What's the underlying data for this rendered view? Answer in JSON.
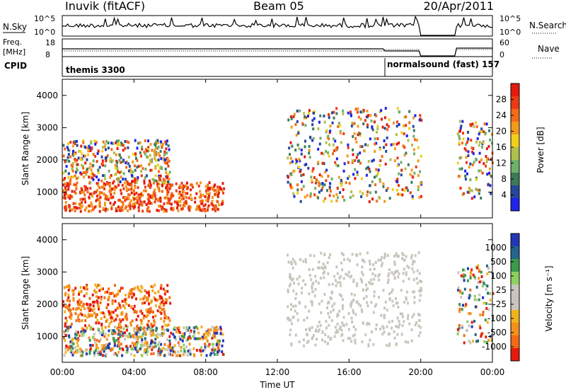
{
  "header": {
    "station": "Inuvik (fitACF)",
    "beam": "Beam 05",
    "date": "20/Apr/2011"
  },
  "top_panels": {
    "nsky_label": "N.Sky",
    "nsky_ticks": [
      "10^5",
      "10^0"
    ],
    "nsearch_label": "N.Search",
    "nsearch_ticks": [
      "10^5",
      "10^0"
    ],
    "freq_label": "Freq.",
    "freq_unit": "[MHz]",
    "freq_ticks": [
      "18",
      "8"
    ],
    "nave_label": "Nave",
    "nave_ticks": [
      "60",
      "0"
    ],
    "cpid_label": "CPID",
    "cpid_segments": [
      {
        "text": "themis 3300",
        "start_hour": 0,
        "end_hour": 18
      },
      {
        "text": "normalsound (fast)  157",
        "start_hour": 18,
        "end_hour": 24
      }
    ]
  },
  "x_axis": {
    "label": "Time UT",
    "ticks": [
      "00:00",
      "04:00",
      "08:00",
      "12:00",
      "16:00",
      "20:00",
      "00:00"
    ],
    "tick_hours": [
      0,
      4,
      8,
      12,
      16,
      20,
      24
    ]
  },
  "colors": {
    "power": [
      "#1f23e8",
      "#27479b",
      "#3c7a5a",
      "#6fb06a",
      "#b0c04a",
      "#f2cf1c",
      "#f29a1c",
      "#f46a17",
      "#ea3a13",
      "#e41a0f"
    ],
    "velocity": [
      "#e41a0f",
      "#f26a17",
      "#f2921c",
      "#f2b21e",
      "#c8c6bc",
      "#c8c6bc",
      "#8ed060",
      "#3a9a4a",
      "#24648a",
      "#2336b8"
    ]
  },
  "chart_data": [
    {
      "type": "heatmap",
      "title": "",
      "xlabel": "",
      "ylabel": "Slant Range [km]",
      "x_range_hours": [
        0,
        24
      ],
      "ylim": [
        200,
        4500
      ],
      "y_ticks": [
        1000,
        2000,
        3000,
        4000
      ],
      "colorbar": {
        "label": "Power [dB]",
        "ticks": [
          "28",
          "24",
          "20",
          "16",
          "12",
          "8",
          "4"
        ],
        "range": [
          0,
          30
        ]
      },
      "features": [
        {
          "name": "band_low_0_9",
          "t0": 0,
          "t1": 9,
          "r0": 400,
          "r1": 1300,
          "level": "high"
        },
        {
          "name": "band_mid_0_6",
          "t0": 0,
          "t1": 6,
          "r0": 1300,
          "r1": 2600,
          "level": "mixed"
        },
        {
          "name": "ridge_12_20",
          "t0": 12.5,
          "t1": 20,
          "r0": 700,
          "r1": 3600,
          "level": "mixed"
        },
        {
          "name": "late_22_24",
          "t0": 22,
          "t1": 24,
          "r0": 800,
          "r1": 3200,
          "level": "mixed"
        }
      ]
    },
    {
      "type": "heatmap",
      "title": "",
      "xlabel": "Time UT",
      "ylabel": "Slant Range [km]",
      "x_range_hours": [
        0,
        24
      ],
      "ylim": [
        200,
        4500
      ],
      "y_ticks": [
        1000,
        2000,
        3000,
        4000
      ],
      "colorbar": {
        "label": "Velocity [m s⁻¹]",
        "ticks": [
          "1000",
          "500",
          "100",
          "25",
          "-25",
          "-100",
          "-500",
          "-1000"
        ],
        "range": [
          -1000,
          1000
        ]
      },
      "features": [
        {
          "name": "band_low_0_9",
          "t0": 0,
          "t1": 9,
          "r0": 400,
          "r1": 1300,
          "level": "mixed"
        },
        {
          "name": "band_mid_0_6",
          "t0": 0,
          "t1": 6,
          "r0": 1300,
          "r1": 2600,
          "level": "negative"
        },
        {
          "name": "ridge_12_20",
          "t0": 12.5,
          "t1": 20,
          "r0": 700,
          "r1": 3600,
          "level": "near_zero"
        },
        {
          "name": "late_22_24",
          "t0": 22,
          "t1": 24,
          "r0": 800,
          "r1": 3200,
          "level": "mixed"
        }
      ]
    }
  ]
}
